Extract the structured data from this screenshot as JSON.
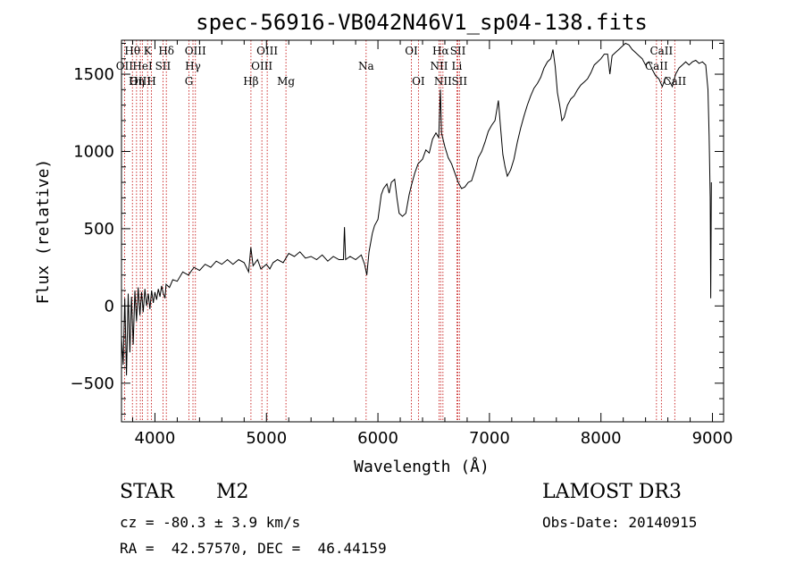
{
  "chart_data": {
    "type": "line",
    "title": "spec-56916-VB042N46V1_sp04-138.fits",
    "xlabel": "Wavelength (Å)",
    "ylabel": "Flux (relative)",
    "xlim": [
      3700,
      9100
    ],
    "ylim": [
      -750,
      1720
    ],
    "x_ticks": [
      4000,
      5000,
      6000,
      7000,
      8000,
      9000
    ],
    "y_ticks": [
      -500,
      0,
      500,
      1000,
      1500
    ],
    "series": [
      {
        "name": "flux",
        "points": [
          [
            3700,
            -200
          ],
          [
            3715,
            -380
          ],
          [
            3730,
            50
          ],
          [
            3745,
            -450
          ],
          [
            3760,
            80
          ],
          [
            3775,
            -300
          ],
          [
            3790,
            60
          ],
          [
            3805,
            -250
          ],
          [
            3820,
            100
          ],
          [
            3835,
            -100
          ],
          [
            3850,
            120
          ],
          [
            3865,
            -60
          ],
          [
            3880,
            90
          ],
          [
            3895,
            -40
          ],
          [
            3910,
            110
          ],
          [
            3925,
            0
          ],
          [
            3940,
            80
          ],
          [
            3955,
            -20
          ],
          [
            3970,
            100
          ],
          [
            3985,
            20
          ],
          [
            4000,
            90
          ],
          [
            4015,
            40
          ],
          [
            4030,
            110
          ],
          [
            4045,
            60
          ],
          [
            4060,
            130
          ],
          [
            4075,
            80
          ],
          [
            4090,
            50
          ],
          [
            4100,
            140
          ],
          [
            4130,
            120
          ],
          [
            4160,
            170
          ],
          [
            4200,
            160
          ],
          [
            4250,
            220
          ],
          [
            4300,
            200
          ],
          [
            4350,
            250
          ],
          [
            4400,
            230
          ],
          [
            4450,
            270
          ],
          [
            4500,
            250
          ],
          [
            4550,
            290
          ],
          [
            4600,
            270
          ],
          [
            4650,
            300
          ],
          [
            4700,
            270
          ],
          [
            4750,
            300
          ],
          [
            4800,
            280
          ],
          [
            4840,
            220
          ],
          [
            4860,
            380
          ],
          [
            4880,
            260
          ],
          [
            4920,
            300
          ],
          [
            4950,
            240
          ],
          [
            5000,
            270
          ],
          [
            5030,
            240
          ],
          [
            5060,
            280
          ],
          [
            5100,
            300
          ],
          [
            5150,
            280
          ],
          [
            5200,
            340
          ],
          [
            5250,
            320
          ],
          [
            5300,
            350
          ],
          [
            5350,
            310
          ],
          [
            5400,
            320
          ],
          [
            5450,
            300
          ],
          [
            5500,
            330
          ],
          [
            5550,
            290
          ],
          [
            5600,
            320
          ],
          [
            5650,
            300
          ],
          [
            5690,
            300
          ],
          [
            5700,
            510
          ],
          [
            5710,
            300
          ],
          [
            5750,
            320
          ],
          [
            5800,
            300
          ],
          [
            5850,
            330
          ],
          [
            5880,
            270
          ],
          [
            5900,
            200
          ],
          [
            5920,
            350
          ],
          [
            5950,
            470
          ],
          [
            5970,
            520
          ],
          [
            6000,
            560
          ],
          [
            6030,
            720
          ],
          [
            6050,
            760
          ],
          [
            6080,
            790
          ],
          [
            6100,
            730
          ],
          [
            6120,
            800
          ],
          [
            6150,
            820
          ],
          [
            6170,
            700
          ],
          [
            6190,
            600
          ],
          [
            6220,
            580
          ],
          [
            6250,
            600
          ],
          [
            6280,
            720
          ],
          [
            6300,
            780
          ],
          [
            6330,
            860
          ],
          [
            6360,
            920
          ],
          [
            6400,
            950
          ],
          [
            6430,
            1010
          ],
          [
            6460,
            990
          ],
          [
            6490,
            1080
          ],
          [
            6520,
            1120
          ],
          [
            6545,
            1090
          ],
          [
            6560,
            1400
          ],
          [
            6570,
            1120
          ],
          [
            6600,
            1030
          ],
          [
            6630,
            960
          ],
          [
            6660,
            920
          ],
          [
            6690,
            860
          ],
          [
            6720,
            800
          ],
          [
            6750,
            760
          ],
          [
            6780,
            770
          ],
          [
            6810,
            800
          ],
          [
            6840,
            810
          ],
          [
            6870,
            880
          ],
          [
            6900,
            960
          ],
          [
            6930,
            1000
          ],
          [
            6960,
            1060
          ],
          [
            6990,
            1130
          ],
          [
            7020,
            1170
          ],
          [
            7050,
            1200
          ],
          [
            7080,
            1330
          ],
          [
            7100,
            1150
          ],
          [
            7120,
            980
          ],
          [
            7140,
            900
          ],
          [
            7160,
            840
          ],
          [
            7190,
            880
          ],
          [
            7220,
            950
          ],
          [
            7250,
            1060
          ],
          [
            7280,
            1150
          ],
          [
            7310,
            1230
          ],
          [
            7340,
            1300
          ],
          [
            7370,
            1360
          ],
          [
            7400,
            1410
          ],
          [
            7430,
            1440
          ],
          [
            7460,
            1480
          ],
          [
            7490,
            1540
          ],
          [
            7520,
            1580
          ],
          [
            7550,
            1600
          ],
          [
            7570,
            1660
          ],
          [
            7590,
            1550
          ],
          [
            7610,
            1380
          ],
          [
            7630,
            1300
          ],
          [
            7650,
            1200
          ],
          [
            7670,
            1220
          ],
          [
            7700,
            1300
          ],
          [
            7730,
            1340
          ],
          [
            7760,
            1360
          ],
          [
            7790,
            1400
          ],
          [
            7820,
            1430
          ],
          [
            7850,
            1450
          ],
          [
            7880,
            1470
          ],
          [
            7910,
            1510
          ],
          [
            7940,
            1560
          ],
          [
            7970,
            1580
          ],
          [
            8000,
            1600
          ],
          [
            8030,
            1630
          ],
          [
            8060,
            1630
          ],
          [
            8080,
            1500
          ],
          [
            8100,
            1620
          ],
          [
            8130,
            1640
          ],
          [
            8160,
            1660
          ],
          [
            8190,
            1680
          ],
          [
            8220,
            1700
          ],
          [
            8250,
            1690
          ],
          [
            8280,
            1660
          ],
          [
            8310,
            1640
          ],
          [
            8340,
            1620
          ],
          [
            8370,
            1600
          ],
          [
            8400,
            1560
          ],
          [
            8430,
            1580
          ],
          [
            8460,
            1530
          ],
          [
            8490,
            1490
          ],
          [
            8520,
            1470
          ],
          [
            8550,
            1420
          ],
          [
            8580,
            1480
          ],
          [
            8610,
            1460
          ],
          [
            8640,
            1420
          ],
          [
            8670,
            1500
          ],
          [
            8700,
            1540
          ],
          [
            8730,
            1560
          ],
          [
            8760,
            1580
          ],
          [
            8790,
            1560
          ],
          [
            8820,
            1580
          ],
          [
            8850,
            1590
          ],
          [
            8880,
            1570
          ],
          [
            8910,
            1580
          ],
          [
            8940,
            1560
          ],
          [
            8960,
            1400
          ],
          [
            8970,
            1100
          ],
          [
            8980,
            700
          ],
          [
            8985,
            50
          ],
          [
            8990,
            800
          ]
        ]
      }
    ],
    "lines": [
      {
        "name": "Hθ",
        "wavelength": 3798,
        "row": 0
      },
      {
        "name": "OII",
        "wavelength": 3727,
        "row": 1
      },
      {
        "name": "OIII",
        "wavelength": 3869,
        "row": 2
      },
      {
        "name": "K",
        "wavelength": 3934,
        "row": 0
      },
      {
        "name": "HeI",
        "wavelength": 3889,
        "row": 1
      },
      {
        "name": "Hη",
        "wavelength": 3835,
        "row": 2
      },
      {
        "name": "Hδ",
        "wavelength": 4102,
        "row": 0
      },
      {
        "name": "SII",
        "wavelength": 4072,
        "row": 1
      },
      {
        "name": "H",
        "wavelength": 3969,
        "row": 2
      },
      {
        "name": "OIII",
        "wavelength": 4363,
        "row": 0
      },
      {
        "name": "Hγ",
        "wavelength": 4341,
        "row": 1
      },
      {
        "name": "G",
        "wavelength": 4305,
        "row": 2
      },
      {
        "name": "OIII",
        "wavelength": 5007,
        "row": 0
      },
      {
        "name": "OIII",
        "wavelength": 4959,
        "row": 1
      },
      {
        "name": "Hβ",
        "wavelength": 4861,
        "row": 2
      },
      {
        "name": "Mg",
        "wavelength": 5175,
        "row": 2
      },
      {
        "name": "Na",
        "wavelength": 5894,
        "row": 1
      },
      {
        "name": "OI",
        "wavelength": 6300,
        "row": 0
      },
      {
        "name": "OI",
        "wavelength": 6363,
        "row": 2
      },
      {
        "name": "Hα",
        "wavelength": 6563,
        "row": 0
      },
      {
        "name": "NII",
        "wavelength": 6548,
        "row": 1
      },
      {
        "name": "NII",
        "wavelength": 6583,
        "row": 2
      },
      {
        "name": "SII",
        "wavelength": 6717,
        "row": 0
      },
      {
        "name": "Li",
        "wavelength": 6708,
        "row": 1
      },
      {
        "name": "SII",
        "wavelength": 6731,
        "row": 2
      },
      {
        "name": "CaII",
        "wavelength": 8542,
        "row": 0
      },
      {
        "name": "CaII",
        "wavelength": 8498,
        "row": 1
      },
      {
        "name": "CaII",
        "wavelength": 8662,
        "row": 2
      }
    ]
  },
  "info": {
    "object_class": "STAR",
    "subclass": "M2",
    "survey": "LAMOST DR3",
    "redshift": "cz = -80.3 ± 3.9 km/s",
    "obs_date": "Obs-Date: 20140915",
    "coords": "RA =  42.57570, DEC =  46.44159"
  },
  "colors": {
    "axis": "#000000",
    "spectrum": "#000000",
    "line_marker": "#c00000",
    "background": "#ffffff"
  }
}
